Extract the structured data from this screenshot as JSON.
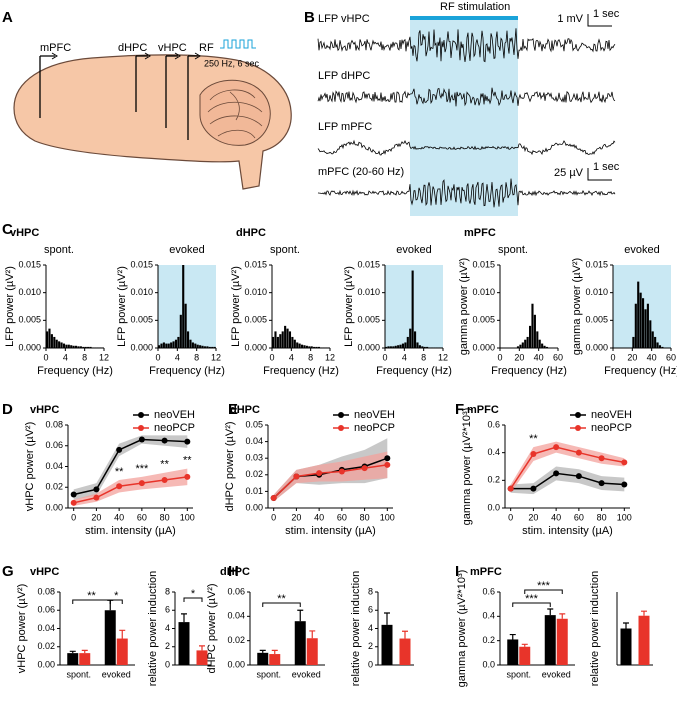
{
  "panel_labels": [
    "A",
    "B",
    "C",
    "D",
    "E",
    "F",
    "G",
    "H",
    "I"
  ],
  "panel_a": {
    "sites": [
      "mPFC",
      "dHPC",
      "vHPC",
      "RF"
    ],
    "stim": "250 Hz, 6 sec"
  },
  "panel_b": {
    "stim_label": "RF stimulation",
    "traces": [
      "LFP vHPC",
      "LFP dHPC",
      "LFP mPFC",
      "mPFC (20-60 Hz)"
    ],
    "scale_1": "1 mV",
    "time_1": "1 sec",
    "scale_2": "25 µV",
    "time_2": "1 sec"
  },
  "chart_data": [
    {
      "type": "histogram",
      "title": "vHPC",
      "subtitle": "spont.",
      "xlabel": "Frequency (Hz)",
      "ylabel": "LFP power (µV²)",
      "color": "#000000",
      "bins": [
        0,
        0.5,
        1,
        1.5,
        2,
        2.5,
        3,
        3.5,
        4,
        4.5,
        5,
        5.5,
        6,
        6.5,
        7,
        7.5,
        8,
        8.5,
        9,
        9.5,
        10,
        10.5,
        11,
        11.5,
        12
      ],
      "counts": [
        0.003,
        0.0035,
        0.0025,
        0.002,
        0.0015,
        0.0012,
        0.001,
        0.0008,
        0.0006,
        0.0006,
        0.0005,
        0.0004,
        0.0004,
        0.0003,
        0.0003,
        0.0002,
        0.0002,
        0.0002,
        0.0002,
        0.0001,
        0.0001,
        0.0001,
        0.0001,
        0.0001
      ],
      "xlim": [
        0,
        12
      ],
      "xticks": [
        0,
        4,
        8,
        12
      ],
      "ylim": [
        0,
        0.015
      ],
      "yticks": [
        {
          "value": 0,
          "label": "0.000"
        },
        {
          "value": 0.005,
          "label": "0.005"
        },
        {
          "value": 0.01,
          "label": "0.010"
        },
        {
          "value": 0.015,
          "label": "0.015"
        }
      ]
    },
    {
      "type": "histogram",
      "subtitle": "evoked",
      "xlabel": "Frequency (Hz)",
      "ylabel": "LFP power (µV²)",
      "color": "#000000",
      "shade": "#c9e8f3",
      "bins": [
        0,
        0.5,
        1,
        1.5,
        2,
        2.5,
        3,
        3.5,
        4,
        4.5,
        5,
        5.5,
        6,
        6.5,
        7,
        7.5,
        8,
        8.5,
        9,
        9.5,
        10,
        10.5,
        11,
        11.5,
        12
      ],
      "counts": [
        0.0005,
        0.0008,
        0.001,
        0.0008,
        0.0008,
        0.001,
        0.0012,
        0.0015,
        0.002,
        0.006,
        0.015,
        0.008,
        0.003,
        0.0015,
        0.001,
        0.0008,
        0.0006,
        0.0005,
        0.0004,
        0.0003,
        0.0003,
        0.0002,
        0.0002,
        0.0002
      ],
      "xlim": [
        0,
        12
      ],
      "xticks": [
        0,
        4,
        8,
        12
      ],
      "ylim": [
        0,
        0.015
      ],
      "yticks": [
        {
          "value": 0,
          "label": "0.000"
        },
        {
          "value": 0.005,
          "label": "0.005"
        },
        {
          "value": 0.01,
          "label": "0.010"
        },
        {
          "value": 0.015,
          "label": "0.015"
        }
      ]
    },
    {
      "type": "histogram",
      "title": "dHPC",
      "subtitle": "spont.",
      "xlabel": "Frequency (Hz)",
      "ylabel": "LFP power (µV²)",
      "color": "#000000",
      "bins": [
        0,
        0.5,
        1,
        1.5,
        2,
        2.5,
        3,
        3.5,
        4,
        4.5,
        5,
        5.5,
        6,
        6.5,
        7,
        7.5,
        8,
        8.5,
        9,
        9.5,
        10,
        10.5,
        11,
        11.5,
        12
      ],
      "counts": [
        0.002,
        0.003,
        0.002,
        0.0025,
        0.003,
        0.004,
        0.0035,
        0.003,
        0.002,
        0.0015,
        0.001,
        0.0008,
        0.0006,
        0.0005,
        0.0004,
        0.0003,
        0.0003,
        0.0002,
        0.0002,
        0.0002,
        0.0001,
        0.0001,
        0.0001,
        0.0001
      ],
      "xlim": [
        0,
        12
      ],
      "xticks": [
        0,
        4,
        8,
        12
      ],
      "ylim": [
        0,
        0.015
      ],
      "yticks": [
        {
          "value": 0,
          "label": "0.000"
        },
        {
          "value": 0.005,
          "label": "0.005"
        },
        {
          "value": 0.01,
          "label": "0.010"
        },
        {
          "value": 0.015,
          "label": "0.015"
        }
      ]
    },
    {
      "type": "histogram",
      "subtitle": "evoked",
      "xlabel": "Frequency (Hz)",
      "ylabel": "LFP power (µV²)",
      "color": "#000000",
      "shade": "#c9e8f3",
      "bins": [
        0,
        0.5,
        1,
        1.5,
        2,
        2.5,
        3,
        3.5,
        4,
        4.5,
        5,
        5.5,
        6,
        6.5,
        7,
        7.5,
        8,
        8.5,
        9,
        9.5,
        10,
        10.5,
        11,
        11.5,
        12
      ],
      "counts": [
        0.0002,
        0.0003,
        0.0003,
        0.0003,
        0.0004,
        0.0005,
        0.0006,
        0.0008,
        0.001,
        0.002,
        0.0035,
        0.014,
        0.003,
        0.001,
        0.0005,
        0.0003,
        0.0002,
        0.0002,
        0.0001,
        0.0001,
        0.0001,
        0.0001,
        0.0001,
        0.0001
      ],
      "xlim": [
        0,
        12
      ],
      "xticks": [
        0,
        4,
        8,
        12
      ],
      "ylim": [
        0,
        0.015
      ],
      "yticks": [
        {
          "value": 0,
          "label": "0.000"
        },
        {
          "value": 0.005,
          "label": "0.005"
        },
        {
          "value": 0.01,
          "label": "0.010"
        },
        {
          "value": 0.015,
          "label": "0.015"
        }
      ]
    },
    {
      "type": "histogram",
      "title": "mPFC",
      "subtitle": "spont.",
      "xlabel": "Frequency (Hz)",
      "ylabel": "gamma power (µV²)",
      "color": "#000000",
      "bins": [
        0,
        2.5,
        5,
        7.5,
        10,
        12.5,
        15,
        17.5,
        20,
        22.5,
        25,
        27.5,
        30,
        32.5,
        35,
        37.5,
        40,
        42.5,
        45,
        47.5,
        50,
        52.5,
        55,
        57.5,
        60
      ],
      "counts": [
        0,
        0,
        0,
        0,
        0,
        0,
        0,
        0.0003,
        0.0006,
        0.001,
        0.0015,
        0.002,
        0.004,
        0.008,
        0.006,
        0.003,
        0.0015,
        0.0008,
        0.0004,
        0.0002,
        0,
        0,
        0,
        0
      ],
      "xlim": [
        0,
        60
      ],
      "xticks": [
        0,
        20,
        40,
        60
      ],
      "ylim": [
        0,
        0.015
      ],
      "yticks": [
        {
          "value": 0,
          "label": "0.000"
        },
        {
          "value": 0.005,
          "label": "0.005"
        },
        {
          "value": 0.01,
          "label": "0.010"
        },
        {
          "value": 0.015,
          "label": "0.015"
        }
      ]
    },
    {
      "type": "histogram",
      "subtitle": "evoked",
      "xlabel": "Frequency (Hz)",
      "ylabel": "gamma power (µV²)",
      "color": "#000000",
      "shade": "#c9e8f3",
      "bins": [
        0,
        2.5,
        5,
        7.5,
        10,
        12.5,
        15,
        17.5,
        20,
        22.5,
        25,
        27.5,
        30,
        32.5,
        35,
        37.5,
        40,
        42.5,
        45,
        47.5,
        50,
        52.5,
        55,
        57.5,
        60
      ],
      "counts": [
        0,
        0,
        0,
        0,
        0,
        0,
        0,
        0,
        0.002,
        0.008,
        0.012,
        0.01,
        0.009,
        0.007,
        0.008,
        0.005,
        0.003,
        0.002,
        0.001,
        0.0005,
        0.0002,
        0,
        0,
        0
      ],
      "xlim": [
        0,
        60
      ],
      "xticks": [
        0,
        20,
        40,
        60
      ],
      "ylim": [
        0,
        0.015
      ],
      "yticks": [
        {
          "value": 0,
          "label": "0.000"
        },
        {
          "value": 0.005,
          "label": "0.005"
        },
        {
          "value": 0.01,
          "label": "0.010"
        },
        {
          "value": 0.015,
          "label": "0.015"
        }
      ]
    },
    {
      "type": "line",
      "title": "vHPC",
      "xlabel": "stim. intensity (µA)",
      "ylabel": "vHPC power (µV²)",
      "x": [
        0,
        20,
        40,
        60,
        80,
        100
      ],
      "xlim": [
        -5,
        105
      ],
      "xticks": [
        0,
        20,
        40,
        60,
        80,
        100
      ],
      "ylim": [
        0,
        0.08
      ],
      "yticks": [
        {
          "value": 0,
          "label": "0.00"
        },
        {
          "value": 0.02,
          "label": "0.02"
        },
        {
          "value": 0.04,
          "label": "0.04"
        },
        {
          "value": 0.06,
          "label": "0.06"
        },
        {
          "value": 0.08,
          "label": "0.08"
        }
      ],
      "series": [
        {
          "name": "neoVEH",
          "color": "#000000",
          "band": "#b5b5b5",
          "values": [
            0.013,
            0.018,
            0.056,
            0.066,
            0.065,
            0.064
          ],
          "errors": [
            0.005,
            0.006,
            0.006,
            0.004,
            0.005,
            0.006
          ]
        },
        {
          "name": "neoPCP",
          "color": "#e8342a",
          "band": "#f3a19c",
          "values": [
            0.005,
            0.01,
            0.021,
            0.024,
            0.027,
            0.03
          ],
          "errors": [
            0.003,
            0.004,
            0.006,
            0.006,
            0.007,
            0.008
          ]
        }
      ],
      "annotations": [
        {
          "text": "**",
          "x": 40
        },
        {
          "text": "***",
          "x": 60
        },
        {
          "text": "**",
          "x": 80
        },
        {
          "text": "**",
          "x": 100
        }
      ]
    },
    {
      "type": "line",
      "title": "dHPC",
      "xlabel": "stim. intensity (µA)",
      "ylabel": "dHPC power (µV²)",
      "x": [
        0,
        20,
        40,
        60,
        80,
        100
      ],
      "xlim": [
        -5,
        105
      ],
      "xticks": [
        0,
        20,
        40,
        60,
        80,
        100
      ],
      "ylim": [
        0,
        0.05
      ],
      "yticks": [
        {
          "value": 0,
          "label": "0.00"
        },
        {
          "value": 0.01,
          "label": "0.01"
        },
        {
          "value": 0.02,
          "label": "0.02"
        },
        {
          "value": 0.03,
          "label": "0.03"
        },
        {
          "value": 0.04,
          "label": "0.04"
        },
        {
          "value": 0.05,
          "label": "0.05"
        }
      ],
      "series": [
        {
          "name": "neoVEH",
          "color": "#000000",
          "band": "#b5b5b5",
          "values": [
            0.006,
            0.019,
            0.02,
            0.023,
            0.025,
            0.03
          ],
          "errors": [
            0.002,
            0.004,
            0.006,
            0.008,
            0.01,
            0.012
          ]
        },
        {
          "name": "neoPCP",
          "color": "#e8342a",
          "band": "#f3a19c",
          "values": [
            0.006,
            0.019,
            0.021,
            0.022,
            0.024,
            0.026
          ],
          "errors": [
            0.002,
            0.004,
            0.005,
            0.006,
            0.007,
            0.008
          ]
        }
      ]
    },
    {
      "type": "line",
      "title": "mPFC",
      "xlabel": "stim. intensity (µA)",
      "ylabel": "gamma power (µV²*10³)",
      "x": [
        0,
        20,
        40,
        60,
        80,
        100
      ],
      "xlim": [
        -5,
        105
      ],
      "xticks": [
        0,
        20,
        40,
        60,
        80,
        100
      ],
      "ylim": [
        0,
        0.6
      ],
      "yticks": [
        {
          "value": 0,
          "label": "0.0"
        },
        {
          "value": 0.2,
          "label": "0.2"
        },
        {
          "value": 0.4,
          "label": "0.4"
        },
        {
          "value": 0.6,
          "label": "0.6"
        }
      ],
      "series": [
        {
          "name": "neoVEH",
          "color": "#000000",
          "band": "#b5b5b5",
          "values": [
            0.14,
            0.14,
            0.25,
            0.23,
            0.18,
            0.17
          ],
          "errors": [
            0.03,
            0.04,
            0.05,
            0.05,
            0.05,
            0.05
          ]
        },
        {
          "name": "neoPCP",
          "color": "#e8342a",
          "band": "#f3a19c",
          "values": [
            0.14,
            0.39,
            0.44,
            0.4,
            0.36,
            0.33
          ],
          "errors": [
            0.03,
            0.05,
            0.04,
            0.04,
            0.04,
            0.03
          ]
        }
      ],
      "annotations": [
        {
          "text": "**",
          "x": 20
        }
      ]
    },
    {
      "type": "bar",
      "title": "vHPC",
      "ylabel": "vHPC power (µV²)",
      "categories": [
        "spont.",
        "evoked"
      ],
      "ylim": [
        0,
        0.08
      ],
      "yticks": [
        {
          "value": 0,
          "label": "0.00"
        },
        {
          "value": 0.02,
          "label": "0.02"
        },
        {
          "value": 0.04,
          "label": "0.04"
        },
        {
          "value": 0.06,
          "label": "0.06"
        },
        {
          "value": 0.08,
          "label": "0.08"
        }
      ],
      "series": [
        {
          "color": "#000000",
          "values": [
            0.013,
            0.06
          ],
          "errors": [
            0.002,
            0.011
          ]
        },
        {
          "color": "#e8342a",
          "values": [
            0.013,
            0.029
          ],
          "errors": [
            0.003,
            0.009
          ]
        }
      ],
      "annotations": [
        "**",
        "*"
      ]
    },
    {
      "type": "bar",
      "ylabel": "relative power induction",
      "ylim": [
        0,
        8
      ],
      "yticks": [
        0,
        2,
        4,
        6,
        8
      ],
      "colors": [
        "#000000",
        "#e8342a"
      ],
      "values": [
        4.7,
        1.6
      ],
      "errors": [
        0.9,
        0.5
      ],
      "annotations": [
        "*"
      ]
    },
    {
      "type": "bar",
      "title": "dHPC",
      "ylabel": "dHPC power (µV²)",
      "categories": [
        "spont.",
        "evoked"
      ],
      "ylim": [
        0,
        0.06
      ],
      "yticks": [
        {
          "value": 0,
          "label": "0.00"
        },
        {
          "value": 0.02,
          "label": "0.02"
        },
        {
          "value": 0.04,
          "label": "0.04"
        },
        {
          "value": 0.06,
          "label": "0.06"
        }
      ],
      "series": [
        {
          "color": "#000000",
          "values": [
            0.01,
            0.036
          ],
          "errors": [
            0.002,
            0.009
          ]
        },
        {
          "color": "#e8342a",
          "values": [
            0.009,
            0.022
          ],
          "errors": [
            0.003,
            0.006
          ]
        }
      ],
      "annotations": [
        "**"
      ]
    },
    {
      "type": "bar",
      "ylabel": "relative power induction",
      "ylim": [
        0,
        8
      ],
      "yticks": [
        0,
        2,
        4,
        6,
        8
      ],
      "colors": [
        "#000000",
        "#e8342a"
      ],
      "values": [
        4.4,
        2.9
      ],
      "errors": [
        1.3,
        0.8
      ]
    },
    {
      "type": "bar",
      "title": "mPFC",
      "ylabel": "gamma power (µV²*10³)",
      "categories": [
        "spont.",
        "evoked"
      ],
      "ylim": [
        0,
        0.6
      ],
      "yticks": [
        {
          "value": 0,
          "label": "0.0"
        },
        {
          "value": 0.2,
          "label": "0.2"
        },
        {
          "value": 0.4,
          "label": "0.4"
        },
        {
          "value": 0.6,
          "label": "0.6"
        }
      ],
      "series": [
        {
          "color": "#000000",
          "values": [
            0.21,
            0.41
          ],
          "errors": [
            0.04,
            0.05
          ]
        },
        {
          "color": "#e8342a",
          "values": [
            0.15,
            0.38
          ],
          "errors": [
            0.02,
            0.04
          ]
        }
      ],
      "annotations": [
        "***",
        "***"
      ]
    },
    {
      "type": "bar",
      "ylabel": "relative power induction",
      "ylim": [
        0,
        4
      ],
      "colors": [
        "#000000",
        "#e8342a"
      ],
      "values": [
        2,
        2.7
      ],
      "errors": [
        0.3,
        0.25
      ]
    }
  ]
}
